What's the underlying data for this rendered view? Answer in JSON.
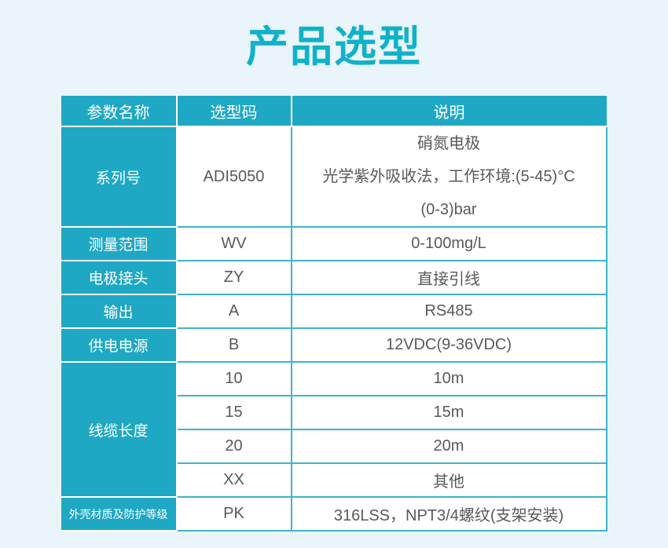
{
  "page": {
    "title": "产品选型",
    "colors": {
      "background": "#e9f5fa",
      "title_text": "#10b1ca",
      "table_teal": "#1fa8c4",
      "cell_border_cyan": "#3fb3d1",
      "cell_text": "#58595b",
      "teal_cell_text": "#ffffff"
    }
  },
  "table": {
    "headers": [
      "参数名称",
      "选型码",
      "说明"
    ],
    "rows": [
      {
        "param": "系列号",
        "code": "ADI5050",
        "desc_lines": [
          "硝氮电极",
          "光学紫外吸收法，工作环境:(5-45)°C",
          "(0-3)bar"
        ]
      },
      {
        "param": "测量范围",
        "code": "WV",
        "desc": "0-100mg/L"
      },
      {
        "param": "电极接头",
        "code": "ZY",
        "desc": "直接引线"
      },
      {
        "param": "输出",
        "code": "A",
        "desc": "RS485"
      },
      {
        "param": "供电电源",
        "code": "B",
        "desc": "12VDC(9-36VDC)"
      },
      {
        "param": "线缆长度",
        "options": [
          {
            "code": "10",
            "desc": "10m"
          },
          {
            "code": "15",
            "desc": "15m"
          },
          {
            "code": "20",
            "desc": "20m"
          },
          {
            "code": "XX",
            "desc": "其他"
          }
        ]
      },
      {
        "param": "外壳材质及防护等级",
        "code": "PK",
        "desc": "316LSS，NPT3/4螺纹(支架安装)"
      }
    ]
  }
}
